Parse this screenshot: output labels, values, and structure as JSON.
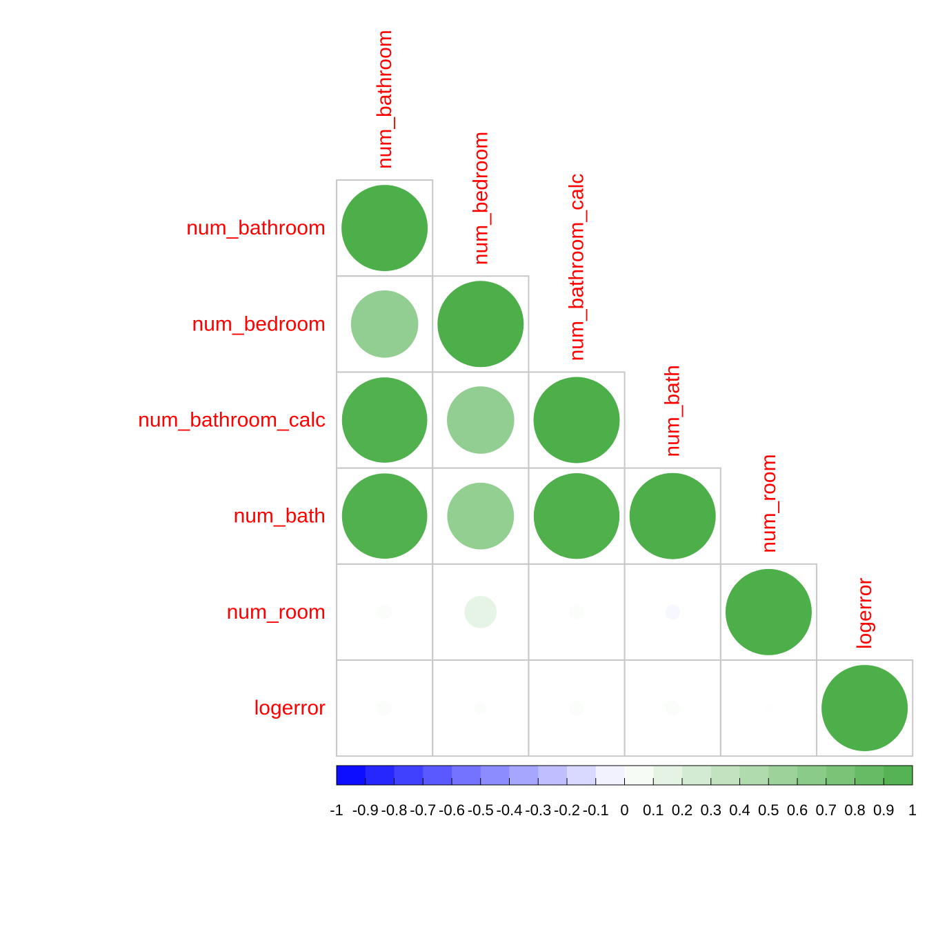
{
  "chart_data": {
    "type": "correlation-matrix",
    "shape": "circle",
    "layout": "lower-triangle",
    "variables": [
      "num_bathroom",
      "num_bedroom",
      "num_bathroom_calc",
      "num_bath",
      "num_room",
      "logerror"
    ],
    "matrix": [
      [
        1.0,
        null,
        null,
        null,
        null,
        null
      ],
      [
        0.61,
        1.0,
        null,
        null,
        null,
        null
      ],
      [
        0.98,
        0.61,
        1.0,
        null,
        null,
        null
      ],
      [
        0.98,
        0.6,
        0.99,
        1.0,
        null,
        null
      ],
      [
        0.03,
        0.14,
        0.03,
        -0.03,
        1.0,
        null
      ],
      [
        0.03,
        0.02,
        0.03,
        0.03,
        0.01,
        1.0
      ]
    ],
    "colorbar": {
      "ticks": [
        "-1",
        "-0.9",
        "-0.8",
        "-0.7",
        "-0.6",
        "-0.5",
        "-0.4",
        "-0.3",
        "-0.2",
        "-0.1",
        "0",
        "0.1",
        "0.2",
        "0.3",
        "0.4",
        "0.5",
        "0.6",
        "0.7",
        "0.8",
        "0.9",
        "1"
      ],
      "range": [
        -1,
        1
      ],
      "low_color": "#0000ff",
      "mid_color": "#ffffff",
      "high_color": "#4daf4a"
    },
    "label_color": "#ff0000",
    "grid_color": "#c8c8c8",
    "legend_position": "bottom"
  }
}
